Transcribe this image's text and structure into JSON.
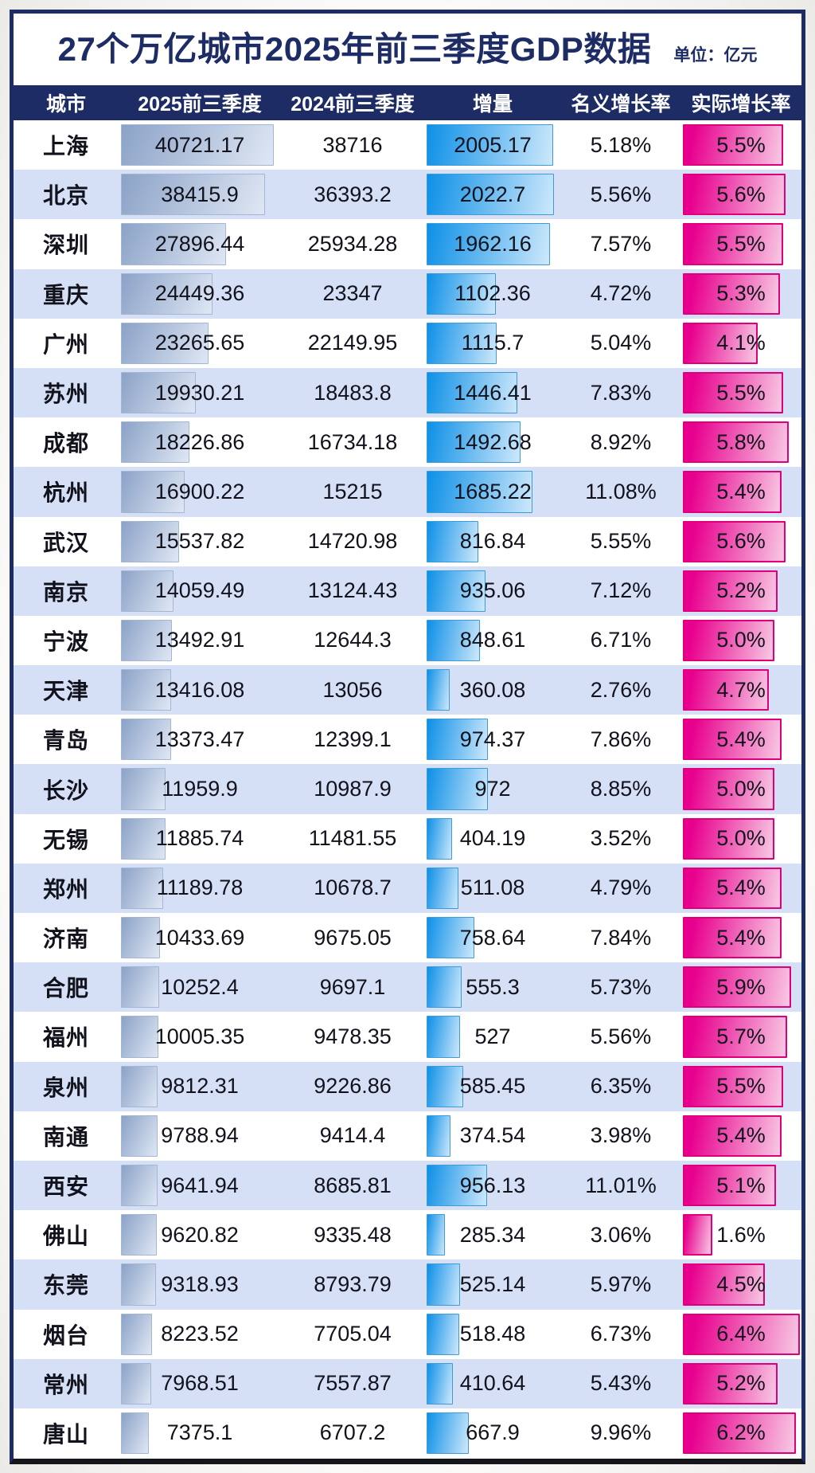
{
  "title": "27个万亿城市2025年前三季度GDP数据",
  "unit_label": "单位：亿元",
  "colors": {
    "navy": "#1e2c66",
    "header_text": "#ffffff",
    "row_base": "#ffffff",
    "row_alt": "#d5dff6",
    "text": "#11121c",
    "frame_bottom": "#15151c",
    "bar2025_from": "#8ba2c7",
    "bar2025_to": "#dfe7f4",
    "bar2025_border": "#a5b6d2",
    "barinc_from": "#0d90e7",
    "barinc_to": "#cde8fb",
    "barinc_border": "#3e9bd9",
    "barreal_from": "#e8008e",
    "barreal_to": "#f8c9e4",
    "barreal_border": "#de0078"
  },
  "chart_data": {
    "type": "table",
    "title": "27个万亿城市2025年前三季度GDP数据",
    "unit": "亿元",
    "columns": [
      "城市",
      "2025前三季度",
      "2024前三季度",
      "增量",
      "名义增长率",
      "实际增长率"
    ],
    "bar_encoded_columns": [
      "2025前三季度",
      "增量",
      "实际增长率"
    ],
    "rows": [
      {
        "city": "上海",
        "gdp_2025": "40721.17",
        "gdp_2024": "38716",
        "increment": "2005.17",
        "nominal_growth": "5.18%",
        "real_growth": "5.5%"
      },
      {
        "city": "北京",
        "gdp_2025": "38415.9",
        "gdp_2024": "36393.2",
        "increment": "2022.7",
        "nominal_growth": "5.56%",
        "real_growth": "5.6%"
      },
      {
        "city": "深圳",
        "gdp_2025": "27896.44",
        "gdp_2024": "25934.28",
        "increment": "1962.16",
        "nominal_growth": "7.57%",
        "real_growth": "5.5%"
      },
      {
        "city": "重庆",
        "gdp_2025": "24449.36",
        "gdp_2024": "23347",
        "increment": "1102.36",
        "nominal_growth": "4.72%",
        "real_growth": "5.3%"
      },
      {
        "city": "广州",
        "gdp_2025": "23265.65",
        "gdp_2024": "22149.95",
        "increment": "1115.7",
        "nominal_growth": "5.04%",
        "real_growth": "4.1%"
      },
      {
        "city": "苏州",
        "gdp_2025": "19930.21",
        "gdp_2024": "18483.8",
        "increment": "1446.41",
        "nominal_growth": "7.83%",
        "real_growth": "5.5%"
      },
      {
        "city": "成都",
        "gdp_2025": "18226.86",
        "gdp_2024": "16734.18",
        "increment": "1492.68",
        "nominal_growth": "8.92%",
        "real_growth": "5.8%"
      },
      {
        "city": "杭州",
        "gdp_2025": "16900.22",
        "gdp_2024": "15215",
        "increment": "1685.22",
        "nominal_growth": "11.08%",
        "real_growth": "5.4%"
      },
      {
        "city": "武汉",
        "gdp_2025": "15537.82",
        "gdp_2024": "14720.98",
        "increment": "816.84",
        "nominal_growth": "5.55%",
        "real_growth": "5.6%"
      },
      {
        "city": "南京",
        "gdp_2025": "14059.49",
        "gdp_2024": "13124.43",
        "increment": "935.06",
        "nominal_growth": "7.12%",
        "real_growth": "5.2%"
      },
      {
        "city": "宁波",
        "gdp_2025": "13492.91",
        "gdp_2024": "12644.3",
        "increment": "848.61",
        "nominal_growth": "6.71%",
        "real_growth": "5.0%"
      },
      {
        "city": "天津",
        "gdp_2025": "13416.08",
        "gdp_2024": "13056",
        "increment": "360.08",
        "nominal_growth": "2.76%",
        "real_growth": "4.7%"
      },
      {
        "city": "青岛",
        "gdp_2025": "13373.47",
        "gdp_2024": "12399.1",
        "increment": "974.37",
        "nominal_growth": "7.86%",
        "real_growth": "5.4%"
      },
      {
        "city": "长沙",
        "gdp_2025": "11959.9",
        "gdp_2024": "10987.9",
        "increment": "972",
        "nominal_growth": "8.85%",
        "real_growth": "5.0%"
      },
      {
        "city": "无锡",
        "gdp_2025": "11885.74",
        "gdp_2024": "11481.55",
        "increment": "404.19",
        "nominal_growth": "3.52%",
        "real_growth": "5.0%"
      },
      {
        "city": "郑州",
        "gdp_2025": "11189.78",
        "gdp_2024": "10678.7",
        "increment": "511.08",
        "nominal_growth": "4.79%",
        "real_growth": "5.4%"
      },
      {
        "city": "济南",
        "gdp_2025": "10433.69",
        "gdp_2024": "9675.05",
        "increment": "758.64",
        "nominal_growth": "7.84%",
        "real_growth": "5.4%"
      },
      {
        "city": "合肥",
        "gdp_2025": "10252.4",
        "gdp_2024": "9697.1",
        "increment": "555.3",
        "nominal_growth": "5.73%",
        "real_growth": "5.9%"
      },
      {
        "city": "福州",
        "gdp_2025": "10005.35",
        "gdp_2024": "9478.35",
        "increment": "527",
        "nominal_growth": "5.56%",
        "real_growth": "5.7%"
      },
      {
        "city": "泉州",
        "gdp_2025": "9812.31",
        "gdp_2024": "9226.86",
        "increment": "585.45",
        "nominal_growth": "6.35%",
        "real_growth": "5.5%"
      },
      {
        "city": "南通",
        "gdp_2025": "9788.94",
        "gdp_2024": "9414.4",
        "increment": "374.54",
        "nominal_growth": "3.98%",
        "real_growth": "5.4%"
      },
      {
        "city": "西安",
        "gdp_2025": "9641.94",
        "gdp_2024": "8685.81",
        "increment": "956.13",
        "nominal_growth": "11.01%",
        "real_growth": "5.1%"
      },
      {
        "city": "佛山",
        "gdp_2025": "9620.82",
        "gdp_2024": "9335.48",
        "increment": "285.34",
        "nominal_growth": "3.06%",
        "real_growth": "1.6%"
      },
      {
        "city": "东莞",
        "gdp_2025": "9318.93",
        "gdp_2024": "8793.79",
        "increment": "525.14",
        "nominal_growth": "5.97%",
        "real_growth": "4.5%"
      },
      {
        "city": "烟台",
        "gdp_2025": "8223.52",
        "gdp_2024": "7705.04",
        "increment": "518.48",
        "nominal_growth": "6.73%",
        "real_growth": "6.4%"
      },
      {
        "city": "常州",
        "gdp_2025": "7968.51",
        "gdp_2024": "7557.87",
        "increment": "410.64",
        "nominal_growth": "5.43%",
        "real_growth": "5.2%"
      },
      {
        "city": "唐山",
        "gdp_2025": "7375.1",
        "gdp_2024": "6707.2",
        "increment": "667.9",
        "nominal_growth": "9.96%",
        "real_growth": "6.2%"
      }
    ]
  }
}
